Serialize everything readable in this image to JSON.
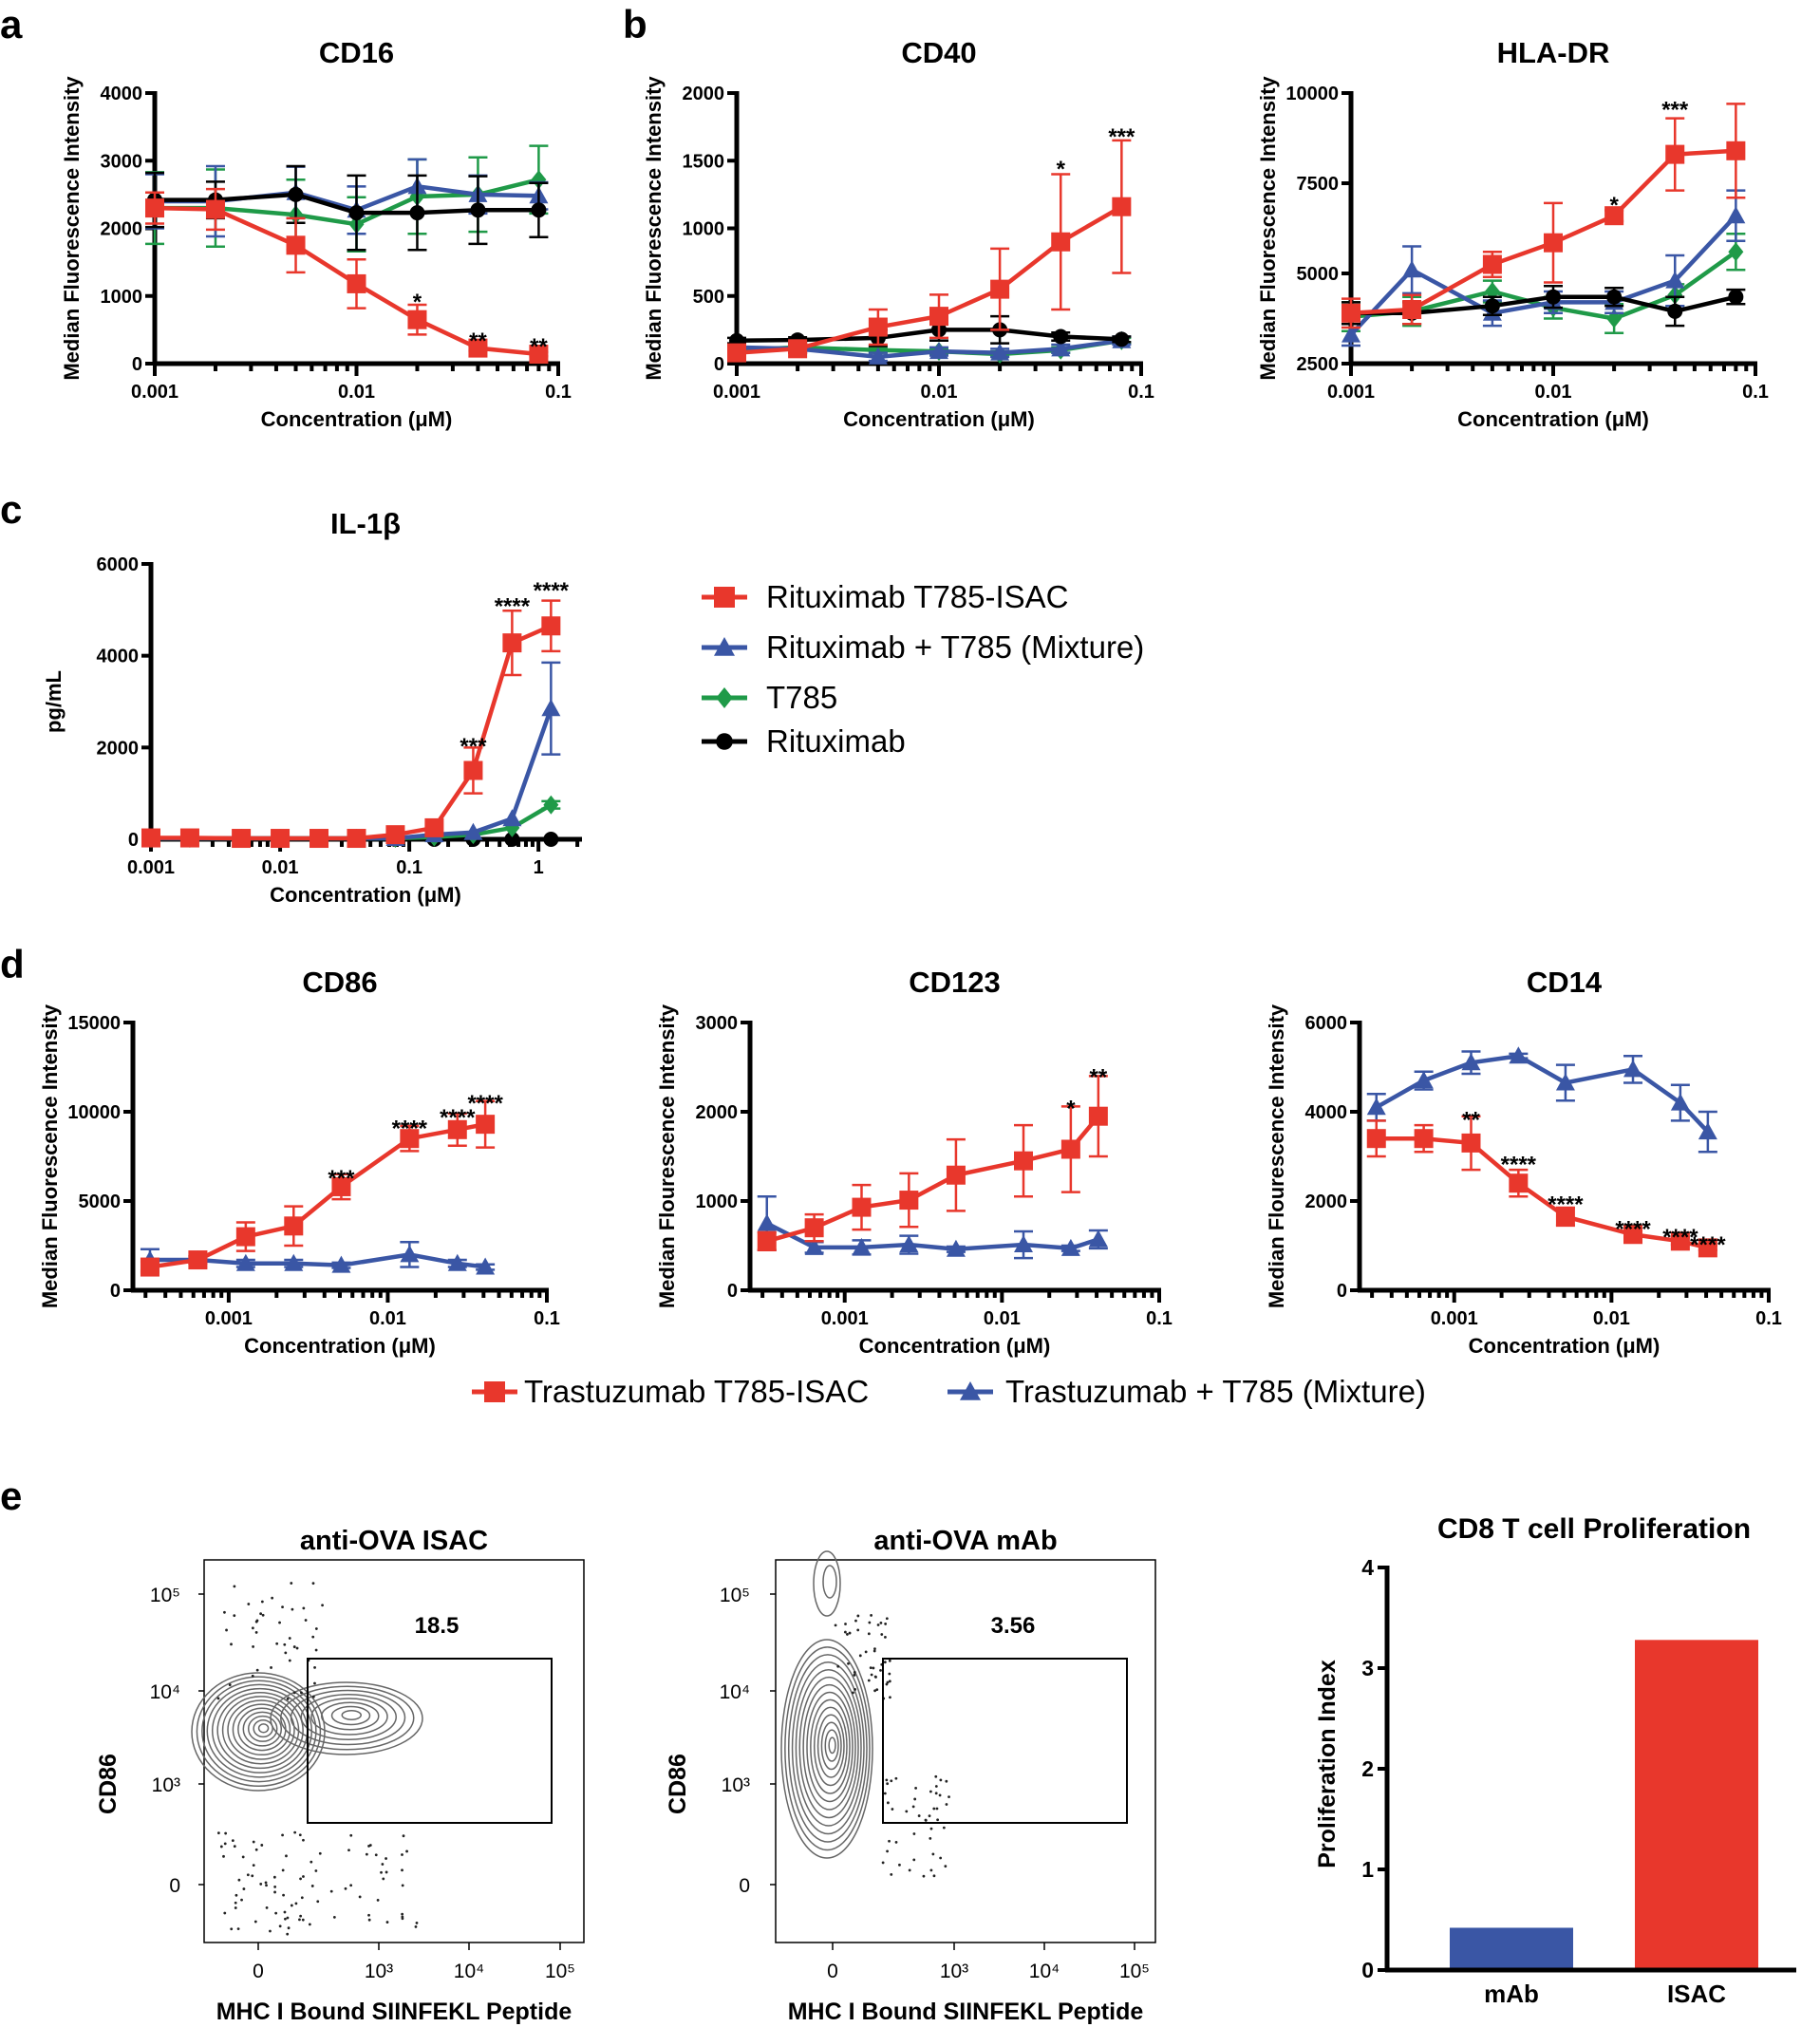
{
  "panel_labels": [
    "a",
    "b",
    "c",
    "d",
    "e"
  ],
  "colors": {
    "red": "#e8372c",
    "blue": "#3a56a5",
    "green": "#1f9a48",
    "black": "#000000"
  },
  "legend_c": [
    {
      "label": "Rituximab T785-ISAC",
      "color": "red",
      "marker": "square"
    },
    {
      "label": "Rituximab + T785 (Mixture)",
      "color": "blue",
      "marker": "triangle"
    },
    {
      "label": "T785",
      "color": "green",
      "marker": "diamond"
    },
    {
      "label": "Rituximab",
      "color": "black",
      "marker": "circle"
    }
  ],
  "legend_d": [
    {
      "label": "Trastuzumab T785-ISAC",
      "color": "red",
      "marker": "square"
    },
    {
      "label": "Trastuzumab + T785 (Mixture)",
      "color": "blue",
      "marker": "triangle"
    }
  ],
  "chart_data": [
    {
      "type": "line",
      "title": "CD16",
      "xlabel": "Concentration (μM)",
      "ylabel": "Median Fluorescence Intensity",
      "xscale": "log",
      "xlim": [
        0.001,
        0.1
      ],
      "ylim": [
        0,
        4000
      ],
      "xticks": [
        "0.001",
        "0.01",
        "0.1"
      ],
      "yticks": [
        0,
        1000,
        2000,
        3000,
        4000
      ],
      "x": [
        0.001,
        0.002,
        0.005,
        0.01,
        0.02,
        0.04,
        0.08
      ],
      "series": [
        {
          "color": "green",
          "marker": "diamond",
          "values": [
            2300,
            2300,
            2200,
            2060,
            2470,
            2500,
            2720
          ],
          "err": [
            530,
            570,
            520,
            400,
            550,
            550,
            500
          ]
        },
        {
          "color": "blue",
          "marker": "triangle",
          "values": [
            2400,
            2400,
            2530,
            2270,
            2620,
            2500,
            2480
          ],
          "err": [
            400,
            520,
            380,
            350,
            400,
            280,
            200
          ]
        },
        {
          "color": "black",
          "marker": "circle",
          "values": [
            2420,
            2420,
            2500,
            2230,
            2230,
            2270,
            2270
          ],
          "err": [
            400,
            270,
            420,
            550,
            550,
            500,
            400
          ]
        },
        {
          "color": "red",
          "marker": "square",
          "values": [
            2300,
            2280,
            1750,
            1180,
            650,
            230,
            140
          ],
          "err": [
            230,
            300,
            400,
            360,
            220,
            40,
            30
          ]
        }
      ],
      "annotations": [
        {
          "x": 0.02,
          "y": 1000,
          "text": "*"
        },
        {
          "x": 0.04,
          "y": 420,
          "text": "**"
        },
        {
          "x": 0.08,
          "y": 340,
          "text": "**"
        }
      ]
    },
    {
      "type": "line",
      "title": "CD40",
      "xlabel": "Concentration (μM)",
      "ylabel": "Median Fluorescence Intensity",
      "xscale": "log",
      "xlim": [
        0.001,
        0.1
      ],
      "ylim": [
        0,
        2000
      ],
      "xticks": [
        "0.001",
        "0.01",
        "0.1"
      ],
      "yticks": [
        0,
        500,
        1000,
        1500,
        2000
      ],
      "x": [
        0.001,
        0.002,
        0.005,
        0.01,
        0.02,
        0.04,
        0.08
      ],
      "series": [
        {
          "color": "green",
          "marker": "diamond",
          "values": [
            100,
            120,
            100,
            90,
            70,
            100,
            170
          ],
          "err": [
            20,
            20,
            20,
            20,
            20,
            20,
            20
          ]
        },
        {
          "color": "blue",
          "marker": "triangle",
          "values": [
            120,
            110,
            50,
            90,
            80,
            110,
            170
          ],
          "err": [
            30,
            30,
            30,
            30,
            30,
            30,
            30
          ]
        },
        {
          "color": "black",
          "marker": "circle",
          "values": [
            170,
            175,
            190,
            250,
            250,
            200,
            180
          ],
          "err": [
            20,
            20,
            60,
            80,
            100,
            30,
            20
          ]
        },
        {
          "color": "red",
          "marker": "square",
          "values": [
            80,
            110,
            270,
            350,
            550,
            900,
            1160
          ],
          "err": [
            40,
            30,
            130,
            160,
            300,
            500,
            490
          ]
        }
      ],
      "annotations": [
        {
          "x": 0.04,
          "y": 1480,
          "text": "*"
        },
        {
          "x": 0.08,
          "y": 1720,
          "text": "***"
        }
      ]
    },
    {
      "type": "line",
      "title": "HLA-DR",
      "xlabel": "Concentration (μM)",
      "ylabel": "Median Fluorescence Intensity",
      "xscale": "log",
      "xlim": [
        0.001,
        0.1
      ],
      "ylim": [
        2500,
        10000
      ],
      "xticks": [
        "0.001",
        "0.01",
        "0.1"
      ],
      "yticks": [
        2500,
        5000,
        7500,
        10000
      ],
      "x": [
        0.001,
        0.002,
        0.005,
        0.01,
        0.02,
        0.04,
        0.08
      ],
      "series": [
        {
          "color": "green",
          "marker": "diamond",
          "values": [
            3800,
            3950,
            4500,
            4050,
            3750,
            4400,
            5600
          ],
          "err": [
            400,
            400,
            300,
            300,
            400,
            300,
            500
          ]
        },
        {
          "color": "blue",
          "marker": "triangle",
          "values": [
            3300,
            5100,
            3900,
            4200,
            4200,
            4800,
            6600
          ],
          "err": [
            300,
            650,
            350,
            300,
            300,
            700,
            700
          ]
        },
        {
          "color": "black",
          "marker": "circle",
          "values": [
            3900,
            3900,
            4100,
            4350,
            4350,
            3950,
            4350
          ],
          "err": [
            300,
            300,
            250,
            300,
            250,
            400,
            200
          ]
        },
        {
          "color": "red",
          "marker": "square",
          "values": [
            3900,
            4000,
            5250,
            5850,
            6600,
            8300,
            8400
          ],
          "err": [
            400,
            400,
            350,
            1100,
            150,
            1000,
            1300
          ]
        }
      ],
      "annotations": [
        {
          "x": 0.02,
          "y": 7050,
          "text": "*"
        },
        {
          "x": 0.04,
          "y": 9700,
          "text": "***"
        }
      ]
    },
    {
      "type": "line",
      "title": "IL-1β",
      "xlabel": "Concentration (μM)",
      "ylabel": "pg/mL",
      "xscale": "log",
      "xlim": [
        0.001,
        2.1
      ],
      "ylim": [
        0,
        6000
      ],
      "xticks": [
        "0.001",
        "0.01",
        "0.1",
        "1"
      ],
      "yticks": [
        0,
        2000,
        4000,
        6000
      ],
      "x": [
        0.001,
        0.002,
        0.005,
        0.01,
        0.02,
        0.039,
        0.078,
        0.156,
        0.3125,
        0.625,
        1.25
      ],
      "series": [
        {
          "color": "black",
          "marker": "circle",
          "values": [
            0,
            0,
            0,
            0,
            0,
            0,
            0,
            0,
            0,
            0,
            0
          ],
          "err": [
            0,
            0,
            0,
            0,
            0,
            0,
            0,
            0,
            0,
            0,
            0
          ]
        },
        {
          "color": "green",
          "marker": "diamond",
          "values": [
            20,
            20,
            20,
            20,
            20,
            20,
            20,
            50,
            100,
            250,
            750
          ],
          "err": [
            0,
            0,
            0,
            0,
            0,
            0,
            0,
            0,
            0,
            0,
            80
          ]
        },
        {
          "color": "blue",
          "marker": "triangle",
          "values": [
            20,
            20,
            20,
            20,
            20,
            20,
            20,
            100,
            150,
            450,
            2850
          ],
          "err": [
            0,
            0,
            0,
            0,
            0,
            0,
            0,
            0,
            0,
            0,
            1000
          ]
        },
        {
          "color": "red",
          "marker": "square",
          "values": [
            30,
            30,
            20,
            20,
            20,
            20,
            100,
            250,
            1500,
            4280,
            4650
          ],
          "err": [
            0,
            0,
            0,
            0,
            0,
            0,
            0,
            0,
            500,
            700,
            550
          ]
        }
      ],
      "annotations": [
        {
          "x": 0.3125,
          "y": 2150,
          "text": "***"
        },
        {
          "x": 0.625,
          "y": 5200,
          "text": "****"
        },
        {
          "x": 1.25,
          "y": 5550,
          "text": "****"
        }
      ]
    },
    {
      "type": "line",
      "title": "CD86",
      "xlabel": "Concentration (μM)",
      "ylabel": "Median Fluorescence Intensity",
      "xscale": "log",
      "xlim": [
        0.00025,
        0.1
      ],
      "ylim": [
        0,
        15000
      ],
      "xticks": [
        "0.001",
        "0.01",
        "0.1"
      ],
      "yticks": [
        0,
        5000,
        10000,
        15000
      ],
      "x": [
        0.00032,
        0.00064,
        0.00128,
        0.00256,
        0.0051,
        0.0137,
        0.0274,
        0.041
      ],
      "series": [
        {
          "color": "blue",
          "marker": "triangle",
          "values": [
            1700,
            1700,
            1500,
            1500,
            1400,
            2000,
            1500,
            1300
          ],
          "err": [
            600,
            200,
            200,
            200,
            150,
            700,
            200,
            150
          ]
        },
        {
          "color": "red",
          "marker": "square",
          "values": [
            1300,
            1700,
            3000,
            3600,
            5800,
            8500,
            9000,
            9300
          ],
          "err": [
            300,
            200,
            800,
            1100,
            700,
            700,
            900,
            1300
          ]
        }
      ],
      "annotations": [
        {
          "x": 0.0051,
          "y": 6600,
          "text": "***"
        },
        {
          "x": 0.0137,
          "y": 9400,
          "text": "****"
        },
        {
          "x": 0.0274,
          "y": 10000,
          "text": "****"
        },
        {
          "x": 0.041,
          "y": 10800,
          "text": "****"
        }
      ]
    },
    {
      "type": "line",
      "title": "CD123",
      "xlabel": "Concentration (μM)",
      "ylabel": "Median Flourescence Intensity",
      "xscale": "log",
      "xlim": [
        0.00025,
        0.1
      ],
      "ylim": [
        0,
        3000
      ],
      "xticks": [
        "0.001",
        "0.01",
        "0.1"
      ],
      "yticks": [
        0,
        1000,
        2000,
        3000
      ],
      "x": [
        0.00032,
        0.00064,
        0.00128,
        0.00256,
        0.0051,
        0.0137,
        0.0274,
        0.041
      ],
      "series": [
        {
          "color": "blue",
          "marker": "triangle",
          "values": [
            750,
            480,
            480,
            510,
            460,
            510,
            470,
            570
          ],
          "err": [
            300,
            60,
            80,
            100,
            30,
            150,
            30,
            100
          ]
        },
        {
          "color": "red",
          "marker": "square",
          "values": [
            550,
            700,
            930,
            1010,
            1290,
            1450,
            1580,
            1950
          ],
          "err": [
            100,
            150,
            250,
            300,
            400,
            400,
            480,
            450
          ]
        }
      ],
      "annotations": [
        {
          "x": 0.0274,
          "y": 2100,
          "text": "*"
        },
        {
          "x": 0.041,
          "y": 2450,
          "text": "**"
        }
      ]
    },
    {
      "type": "line",
      "title": "CD14",
      "xlabel": "Concentration (μM)",
      "ylabel": "Median Flourescence Intensity",
      "xscale": "log",
      "xlim": [
        0.00025,
        0.1
      ],
      "ylim": [
        0,
        6000
      ],
      "xticks": [
        "0.001",
        "0.01",
        "0.1"
      ],
      "yticks": [
        0,
        2000,
        4000,
        6000
      ],
      "x": [
        0.00032,
        0.00064,
        0.00128,
        0.00256,
        0.0051,
        0.0137,
        0.0274,
        0.041
      ],
      "series": [
        {
          "color": "blue",
          "marker": "triangle",
          "values": [
            4100,
            4700,
            5100,
            5250,
            4650,
            4950,
            4200,
            3550
          ],
          "err": [
            300,
            200,
            250,
            50,
            400,
            300,
            400,
            450
          ]
        },
        {
          "color": "red",
          "marker": "square",
          "values": [
            3400,
            3400,
            3300,
            2400,
            1650,
            1250,
            1100,
            950
          ],
          "err": [
            400,
            300,
            600,
            300,
            200,
            80,
            80,
            50
          ]
        }
      ],
      "annotations": [
        {
          "x": 0.00128,
          "y": 3950,
          "text": "**"
        },
        {
          "x": 0.00256,
          "y": 2950,
          "text": "****"
        },
        {
          "x": 0.0051,
          "y": 2050,
          "text": "****"
        },
        {
          "x": 0.0137,
          "y": 1500,
          "text": "****"
        },
        {
          "x": 0.0274,
          "y": 1320,
          "text": "****"
        },
        {
          "x": 0.041,
          "y": 1150,
          "text": "****"
        }
      ]
    },
    {
      "type": "contour",
      "title": "anti-OVA ISAC",
      "xlabel": "MHC I Bound SIINFEKL Peptide",
      "ylabel": "CD86",
      "xticks": [
        "0",
        "10³",
        "10⁴",
        "10⁵"
      ],
      "yticks": [
        "10⁵",
        "10⁴",
        "10³",
        "0"
      ],
      "gate_percent": "18.5"
    },
    {
      "type": "contour",
      "title": "anti-OVA mAb",
      "xlabel": "MHC I Bound SIINFEKL Peptide",
      "ylabel": "CD86",
      "xticks": [
        "0",
        "10³",
        "10⁴",
        "10⁵"
      ],
      "yticks": [
        "10⁵",
        "10⁴",
        "10³",
        "0"
      ],
      "gate_percent": "3.56"
    },
    {
      "type": "bar",
      "title": "CD8 T cell Proliferation",
      "ylabel": "Proliferation Index",
      "categories": [
        "mAb",
        "ISAC"
      ],
      "values": [
        0.42,
        3.28
      ],
      "bar_colors": [
        "blue",
        "red"
      ],
      "ylim": [
        0,
        4
      ],
      "yticks": [
        0,
        1,
        2,
        3,
        4
      ]
    }
  ]
}
